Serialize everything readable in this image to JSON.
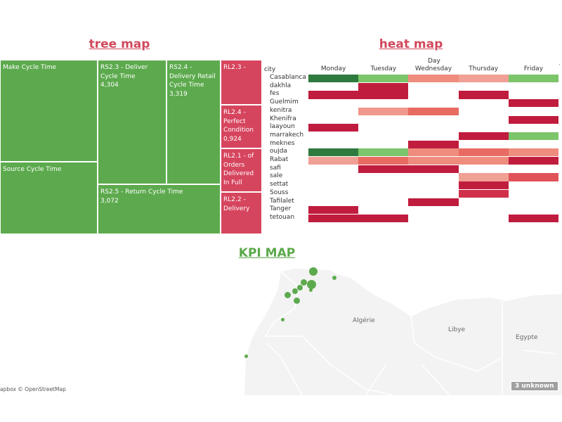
{
  "titles": {
    "treemap": "tree map",
    "heatmap": "heat map",
    "kpi": "KPI MAP"
  },
  "treemap": [
    {
      "label": "Make Cycle Time",
      "value": "",
      "color": "green"
    },
    {
      "label": "Source Cycle Time",
      "value": "",
      "color": "green"
    },
    {
      "label": "RS2.3 - Deliver Cycle Time",
      "value": "4,304",
      "color": "green"
    },
    {
      "label": "RS2.4 - Delivery Retail Cycle Time",
      "value": "3,319",
      "color": "green"
    },
    {
      "label": "RS2.5 - Return Cycle Time",
      "value": "3,072",
      "color": "green"
    },
    {
      "label": "RL2.3 -",
      "value": "",
      "color": "red"
    },
    {
      "label": "RL2.4 - Perfect Condition",
      "value": "0,924",
      "color": "red"
    },
    {
      "label": "RL2.1 - of Orders Delivered In Full",
      "value": "",
      "color": "red"
    },
    {
      "label": "RL2.2 - Delivery",
      "value": "",
      "color": "red"
    }
  ],
  "heatmap": {
    "day_header": "Day",
    "city_header": "city",
    "columns": [
      "Monday",
      "Tuesday",
      "Wednesday",
      "Thursday",
      "Friday"
    ],
    "rows": [
      {
        "city": "Casablanca",
        "cells": [
          "#2f7a3e",
          "#7cc56a",
          "#ee8c7e",
          "#f0a095",
          "#7cc56a"
        ]
      },
      {
        "city": "dakhla",
        "cells": [
          "",
          "#c01c3e",
          "",
          "",
          ""
        ]
      },
      {
        "city": "fes",
        "cells": [
          "#c01c3e",
          "#c01c3e",
          "",
          "#c01c3e",
          ""
        ]
      },
      {
        "city": "Guelmim",
        "cells": [
          "",
          "",
          "",
          "",
          "#c01c3e"
        ]
      },
      {
        "city": "kenitra",
        "cells": [
          "",
          "#f0988c",
          "#e86b62",
          "",
          ""
        ]
      },
      {
        "city": "Khenifra",
        "cells": [
          "",
          "",
          "",
          "",
          "#c01c3e"
        ]
      },
      {
        "city": "laayoun",
        "cells": [
          "#c01c3e",
          "",
          "",
          "",
          ""
        ]
      },
      {
        "city": "marrakech",
        "cells": [
          "",
          "",
          "",
          "#c01c3e",
          "#7cc56a"
        ]
      },
      {
        "city": "meknes",
        "cells": [
          "",
          "",
          "#c01c3e",
          "",
          ""
        ]
      },
      {
        "city": "oujda",
        "cells": [
          "#2f7a3e",
          "#7cc56a",
          "#ee8c7e",
          "#e86b62",
          "#ee8c7e"
        ]
      },
      {
        "city": "Rabat",
        "cells": [
          "#f0a095",
          "#e86b62",
          "#ee8c7e",
          "#ee8c7e",
          "#c01c3e"
        ]
      },
      {
        "city": "safi",
        "cells": [
          "",
          "#c01c3e",
          "#c01c3e",
          "",
          ""
        ]
      },
      {
        "city": "sale",
        "cells": [
          "",
          "",
          "",
          "#f0a095",
          "#e05358"
        ]
      },
      {
        "city": "settat",
        "cells": [
          "",
          "",
          "",
          "#c01c3e",
          ""
        ]
      },
      {
        "city": "Souss",
        "cells": [
          "",
          "",
          "",
          "#d0304a",
          ""
        ]
      },
      {
        "city": "Tafilalet",
        "cells": [
          "",
          "",
          "#c01c3e",
          "",
          ""
        ]
      },
      {
        "city": "Tanger",
        "cells": [
          "#c01c3e",
          "",
          "",
          "",
          ""
        ]
      },
      {
        "city": "tetouan",
        "cells": [
          "#c01c3e",
          "#c01c3e",
          "",
          "",
          "#c01c3e"
        ]
      }
    ]
  },
  "map": {
    "countries": [
      "Algérie",
      "Libye",
      "Egypte"
    ],
    "attribution": "apbox © OpenStreetMap",
    "unknown_badge": "3 unknown"
  },
  "colors": {
    "green": "#5daa4e",
    "red": "#d6455e",
    "title_red": "#d1485c",
    "title_green": "#5ba84a"
  }
}
